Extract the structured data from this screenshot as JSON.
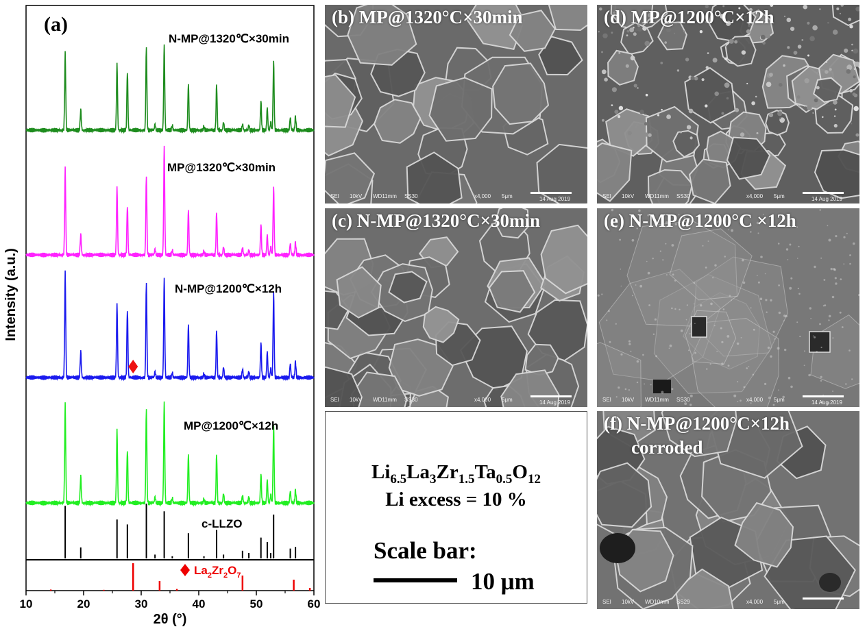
{
  "chart_data": {
    "type": "line",
    "panel_label": "(a)",
    "xlabel": "2θ (°)",
    "ylabel": "Intensity (a.u.)",
    "xlim": [
      10,
      60
    ],
    "xticks": [
      "10",
      "20",
      "30",
      "40",
      "50",
      "60"
    ],
    "llzo_peaks": [
      16.8,
      19.5,
      25.8,
      27.6,
      30.9,
      32.4,
      34.0,
      35.4,
      38.2,
      40.9,
      43.1,
      44.3,
      47.6,
      48.7,
      50.8,
      51.9,
      52.5,
      53.0,
      55.9,
      56.8
    ],
    "series": [
      {
        "name": "N-MP@1320℃×30min",
        "color": "#1e8c1e",
        "intensities": [
          0.66,
          0.18,
          0.57,
          0.5,
          0.71,
          0.05,
          0.74,
          0.04,
          0.4,
          0.03,
          0.39,
          0.07,
          0.05,
          0.04,
          0.25,
          0.19,
          0.07,
          0.6,
          0.11,
          0.12
        ]
      },
      {
        "name": "MP@1320℃×30min",
        "color": "#ff22ff",
        "intensities": [
          0.74,
          0.18,
          0.58,
          0.42,
          0.67,
          0.05,
          0.94,
          0.04,
          0.39,
          0.03,
          0.36,
          0.07,
          0.06,
          0.04,
          0.26,
          0.17,
          0.07,
          0.59,
          0.1,
          0.11
        ]
      },
      {
        "name": "N-MP@1200℃×12h",
        "color": "#1a1aee",
        "intensities": [
          0.9,
          0.23,
          0.63,
          0.58,
          0.81,
          0.05,
          0.86,
          0.04,
          0.46,
          0.03,
          0.4,
          0.09,
          0.07,
          0.05,
          0.3,
          0.22,
          0.08,
          0.74,
          0.12,
          0.14
        ],
        "impurity_marker_x": 28.6
      },
      {
        "name": "MP@1200℃×12h",
        "color": "#22ee22",
        "intensities": [
          0.82,
          0.23,
          0.61,
          0.44,
          0.78,
          0.05,
          0.85,
          0.04,
          0.41,
          0.03,
          0.4,
          0.08,
          0.06,
          0.05,
          0.24,
          0.19,
          0.07,
          0.66,
          0.1,
          0.11
        ]
      },
      {
        "name": "c-LLZO",
        "color": "#000000",
        "intensities": [
          0.96,
          0.2,
          0.71,
          0.62,
          1.0,
          0.07,
          0.86,
          0.04,
          0.46,
          0.04,
          0.52,
          0.07,
          0.14,
          0.1,
          0.38,
          0.3,
          0.1,
          0.8,
          0.18,
          0.21
        ]
      }
    ],
    "reference": {
      "name": "La2Zr2O7",
      "name_parts": [
        "La",
        "2",
        "Zr",
        "2",
        "O",
        "7"
      ],
      "color": "#ee0000",
      "peaks": [
        {
          "x": 14.3,
          "i": 0.04
        },
        {
          "x": 23.5,
          "i": 0.03
        },
        {
          "x": 28.6,
          "i": 1.0
        },
        {
          "x": 33.2,
          "i": 0.35
        },
        {
          "x": 36.2,
          "i": 0.06
        },
        {
          "x": 47.6,
          "i": 0.55
        },
        {
          "x": 56.5,
          "i": 0.4
        },
        {
          "x": 59.3,
          "i": 0.1
        }
      ]
    }
  },
  "sem_panels": [
    {
      "id": "b",
      "label": "(b) MP@1320°C×30min"
    },
    {
      "id": "d",
      "label": "(d) MP@1200°C×12h"
    },
    {
      "id": "c",
      "label": "(c) N-MP@1320°C×30min"
    },
    {
      "id": "e",
      "label": "(e) N-MP@1200°C ×12h"
    },
    {
      "id": "f",
      "label": "(f) N-MP@1200°C×12h",
      "label_line2": "corroded"
    }
  ],
  "sem_info": {
    "sei": "SEI",
    "kv": "10kV",
    "wd": "WD11mm",
    "wd_f": "WD10mm",
    "ss": "SS30",
    "ss_f": "SS29",
    "mag": "x4,000",
    "scale": "5μm",
    "date": "14 Aug 2019"
  },
  "info_box": {
    "formula_parts": [
      "Li",
      "6.5",
      "La",
      "3",
      "Zr",
      "1.5",
      "Ta",
      "0.5",
      "O",
      "12"
    ],
    "li_excess": "Li excess = 10 %",
    "scale_bar_title": "Scale bar:",
    "scale_bar_value": "10 μm"
  }
}
